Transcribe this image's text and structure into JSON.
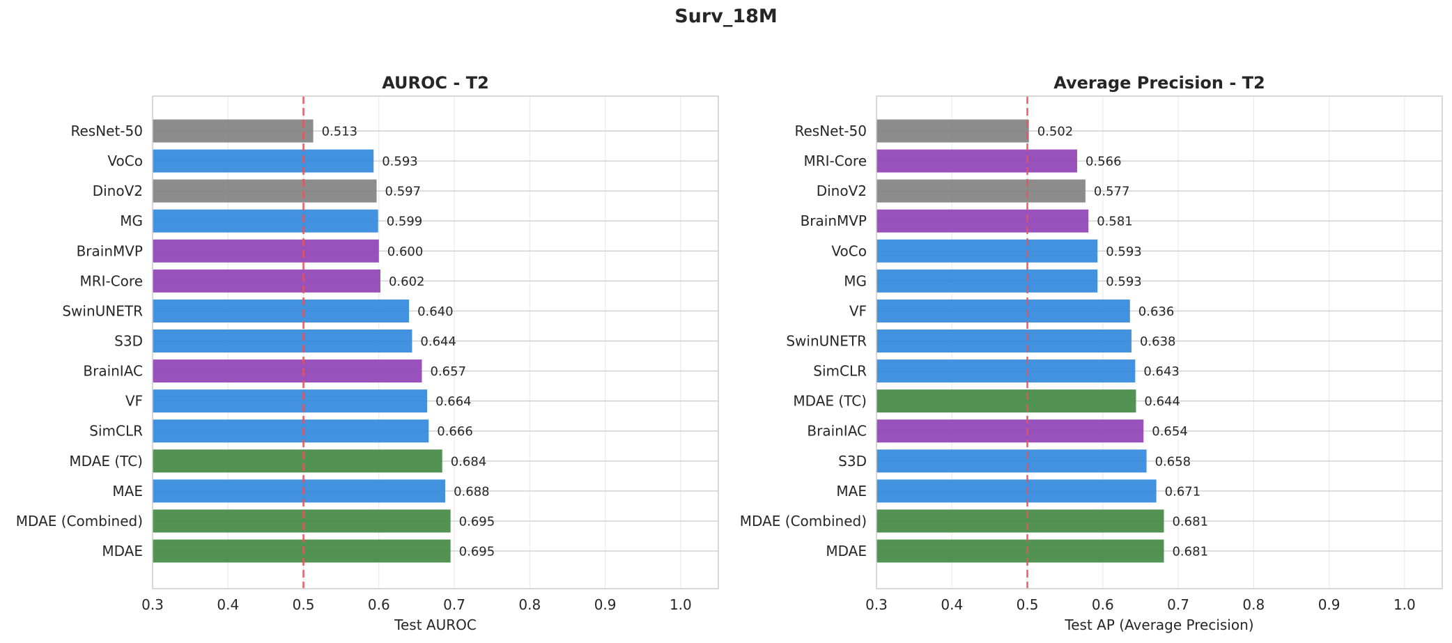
{
  "title": "Surv_18M",
  "colors": {
    "purple": "#8e3fb5",
    "blue": "#2f86dc",
    "gray": "#808080",
    "green": "#3f8740",
    "reference_line": "#e8545a"
  },
  "chart_data": [
    {
      "type": "bar",
      "orientation": "horizontal",
      "title": "AUROC - T2",
      "xlabel": "Test AUROC",
      "ylabel": "",
      "xlim": [
        0.3,
        1.05
      ],
      "xticks": [
        "0.3",
        "0.4",
        "0.5",
        "0.6",
        "0.7",
        "0.8",
        "0.9",
        "1.0"
      ],
      "reference_line": 0.5,
      "grid": true,
      "categories": [
        "ResNet-50",
        "VoCo",
        "DinoV2",
        "MG",
        "BrainMVP",
        "MRI-Core",
        "SwinUNETR",
        "S3D",
        "BrainIAC",
        "VF",
        "SimCLR",
        "MDAE (TC)",
        "MAE",
        "MDAE (Combined)",
        "MDAE"
      ],
      "values": [
        0.513,
        0.593,
        0.597,
        0.599,
        0.6,
        0.602,
        0.64,
        0.644,
        0.657,
        0.664,
        0.666,
        0.684,
        0.688,
        0.695,
        0.695
      ],
      "value_labels": [
        "0.513",
        "0.593",
        "0.597",
        "0.599",
        "0.600",
        "0.602",
        "0.640",
        "0.644",
        "0.657",
        "0.664",
        "0.666",
        "0.684",
        "0.688",
        "0.695",
        "0.695"
      ],
      "bar_colors": [
        "gray",
        "blue",
        "gray",
        "blue",
        "purple",
        "purple",
        "blue",
        "blue",
        "purple",
        "blue",
        "blue",
        "green",
        "blue",
        "green",
        "green"
      ]
    },
    {
      "type": "bar",
      "orientation": "horizontal",
      "title": "Average Precision - T2",
      "xlabel": "Test AP (Average Precision)",
      "ylabel": "",
      "xlim": [
        0.3,
        1.05
      ],
      "xticks": [
        "0.3",
        "0.4",
        "0.5",
        "0.6",
        "0.7",
        "0.8",
        "0.9",
        "1.0"
      ],
      "reference_line": 0.5,
      "grid": true,
      "categories": [
        "ResNet-50",
        "MRI-Core",
        "DinoV2",
        "BrainMVP",
        "VoCo",
        "MG",
        "VF",
        "SwinUNETR",
        "SimCLR",
        "MDAE (TC)",
        "BrainIAC",
        "S3D",
        "MAE",
        "MDAE (Combined)",
        "MDAE"
      ],
      "values": [
        0.502,
        0.566,
        0.577,
        0.581,
        0.593,
        0.593,
        0.636,
        0.638,
        0.643,
        0.644,
        0.654,
        0.658,
        0.671,
        0.681,
        0.681
      ],
      "value_labels": [
        "0.502",
        "0.566",
        "0.577",
        "0.581",
        "0.593",
        "0.593",
        "0.636",
        "0.638",
        "0.643",
        "0.644",
        "0.654",
        "0.658",
        "0.671",
        "0.681",
        "0.681"
      ],
      "bar_colors": [
        "gray",
        "purple",
        "gray",
        "purple",
        "blue",
        "blue",
        "blue",
        "blue",
        "blue",
        "green",
        "purple",
        "blue",
        "blue",
        "green",
        "green"
      ]
    }
  ]
}
